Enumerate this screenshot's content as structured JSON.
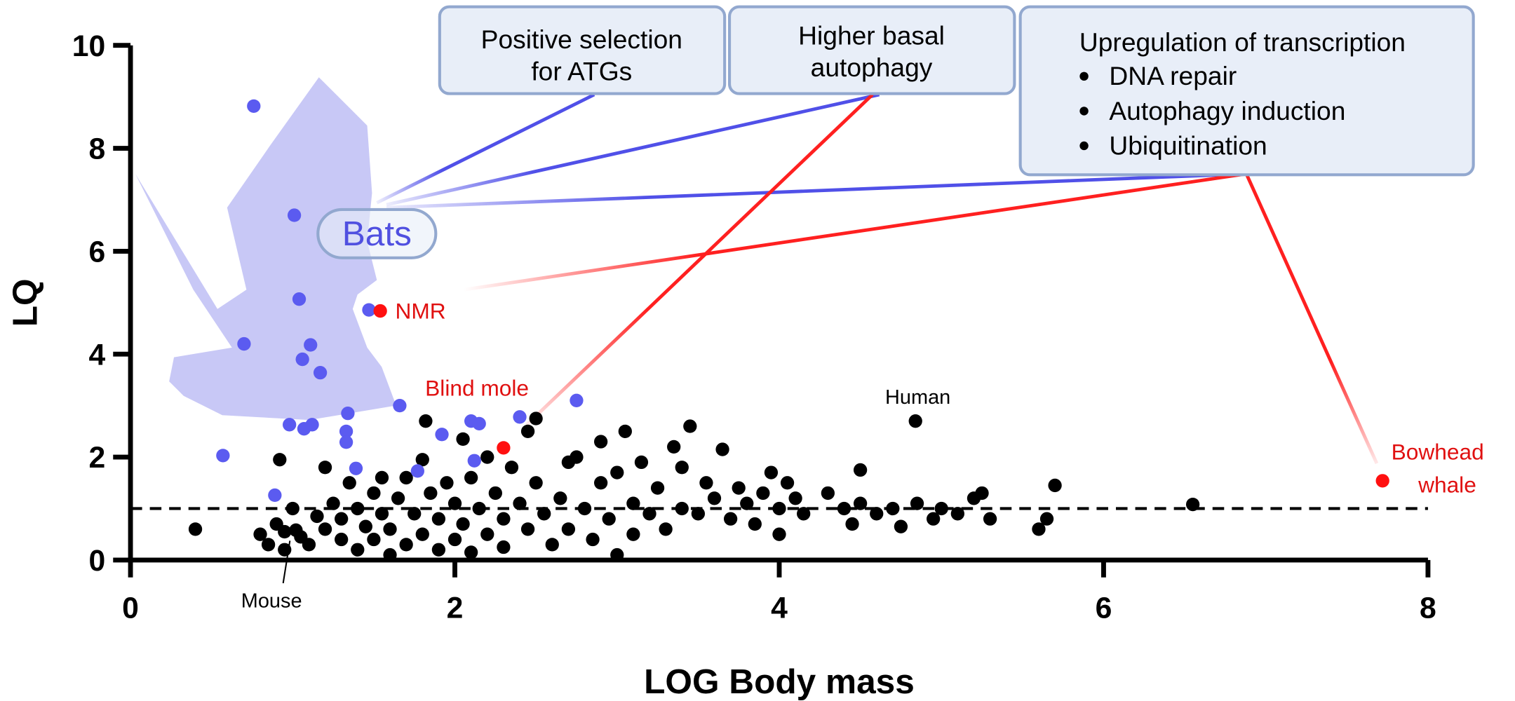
{
  "chart_data": {
    "type": "scatter",
    "xlabel": "LOG Body mass",
    "ylabel": "LQ",
    "xlim": [
      0,
      8
    ],
    "xticks": [
      0,
      2,
      4,
      6,
      8
    ],
    "ylim": [
      0,
      10
    ],
    "yticks": [
      0,
      2,
      4,
      6,
      8,
      10
    ],
    "hline": 1,
    "series": [
      {
        "color": "#000000",
        "x": [
          0.4,
          0.8,
          0.85,
          0.9,
          0.95,
          0.95,
          1.0,
          1.05,
          1.1,
          1.15,
          1.2,
          1.2,
          0.92,
          1.25,
          1.3,
          1.3,
          1.35,
          1.4,
          1.4,
          1.45,
          1.5,
          1.5,
          1.55,
          1.55,
          1.6,
          1.6,
          1.65,
          1.7,
          1.7,
          1.75,
          1.8,
          1.8,
          1.82,
          1.85,
          1.9,
          1.9,
          1.95,
          2.0,
          2.0,
          2.05,
          2.05,
          2.1,
          2.1,
          2.15,
          2.2,
          2.2,
          2.25,
          2.3,
          2.3,
          2.35,
          2.4,
          2.45,
          2.45,
          2.5,
          2.5,
          2.55,
          2.6,
          2.65,
          2.7,
          2.7,
          2.75,
          2.8,
          2.85,
          2.9,
          2.9,
          2.95,
          3.0,
          3.0,
          3.05,
          3.1,
          3.1,
          3.15,
          3.2,
          3.25,
          3.3,
          3.35,
          3.4,
          3.4,
          3.45,
          3.5,
          3.55,
          3.6,
          3.65,
          3.7,
          3.75,
          3.8,
          3.85,
          3.9,
          3.95,
          4.0,
          4.0,
          4.05,
          4.1,
          4.15,
          4.3,
          4.4,
          4.45,
          4.5,
          4.5,
          4.6,
          4.7,
          4.75,
          4.85,
          4.95,
          5.0,
          5.1,
          5.2,
          5.25,
          5.3,
          5.6,
          5.65,
          5.7,
          6.55,
          4.84,
          1.02
        ],
        "y": [
          0.6,
          0.5,
          0.3,
          0.7,
          0.55,
          0.2,
          1.0,
          0.45,
          0.3,
          0.85,
          1.8,
          0.6,
          1.95,
          1.1,
          0.4,
          0.8,
          1.5,
          1.0,
          0.2,
          0.65,
          1.3,
          0.4,
          1.6,
          0.9,
          0.6,
          0.1,
          1.2,
          1.6,
          0.3,
          0.9,
          1.95,
          0.5,
          2.7,
          1.3,
          0.8,
          0.2,
          1.5,
          1.1,
          0.4,
          2.35,
          0.7,
          1.6,
          0.15,
          1.0,
          2.0,
          0.5,
          1.3,
          0.8,
          0.25,
          1.8,
          1.1,
          2.5,
          0.6,
          2.75,
          1.5,
          0.9,
          0.3,
          1.2,
          1.9,
          0.6,
          2.0,
          1.0,
          0.4,
          2.3,
          1.5,
          0.8,
          0.1,
          1.7,
          2.5,
          1.1,
          0.5,
          1.9,
          0.9,
          1.4,
          0.6,
          2.2,
          1.0,
          1.8,
          2.6,
          0.9,
          1.5,
          1.2,
          2.15,
          0.8,
          1.4,
          1.1,
          0.7,
          1.3,
          1.7,
          1.0,
          0.5,
          1.5,
          1.2,
          0.9,
          1.3,
          1.0,
          0.7,
          1.75,
          1.1,
          0.9,
          1.0,
          0.65,
          1.1,
          0.8,
          1.0,
          0.9,
          1.2,
          1.3,
          0.8,
          0.6,
          0.8,
          1.45,
          1.08,
          2.7,
          0.58
        ]
      },
      {
        "color": "#5b5bf0",
        "x": [
          0.76,
          1.01,
          1.04,
          1.47,
          0.7,
          1.11,
          1.06,
          1.17,
          1.66,
          2.75,
          1.34,
          0.98,
          1.07,
          1.12,
          1.33,
          1.33,
          1.92,
          2.1,
          2.15,
          2.4,
          0.57,
          1.39,
          1.77,
          2.12,
          0.89
        ],
        "y": [
          8.82,
          6.7,
          5.07,
          4.86,
          4.2,
          4.18,
          3.9,
          3.64,
          3.0,
          3.1,
          2.85,
          2.63,
          2.55,
          2.63,
          2.5,
          2.29,
          2.44,
          2.7,
          2.65,
          2.78,
          2.03,
          1.78,
          1.73,
          1.93,
          1.26
        ]
      },
      {
        "color": "#ff1010",
        "x": [
          1.54,
          2.3,
          7.72
        ],
        "y": [
          4.84,
          2.18,
          1.54
        ]
      }
    ],
    "annotations": [
      "NMR",
      "Blind mole",
      "Human",
      "Mouse",
      "Bowhead",
      "whale",
      "Bats"
    ],
    "boxes": [
      {
        "lines": [
          "Positive selection",
          "for ATGs"
        ]
      },
      {
        "lines": [
          "Higher basal",
          "autophagy"
        ]
      },
      {
        "title": "Upregulation of transcription",
        "items": [
          "DNA repair",
          "Autophagy induction",
          "Ubiquitination"
        ]
      }
    ]
  }
}
